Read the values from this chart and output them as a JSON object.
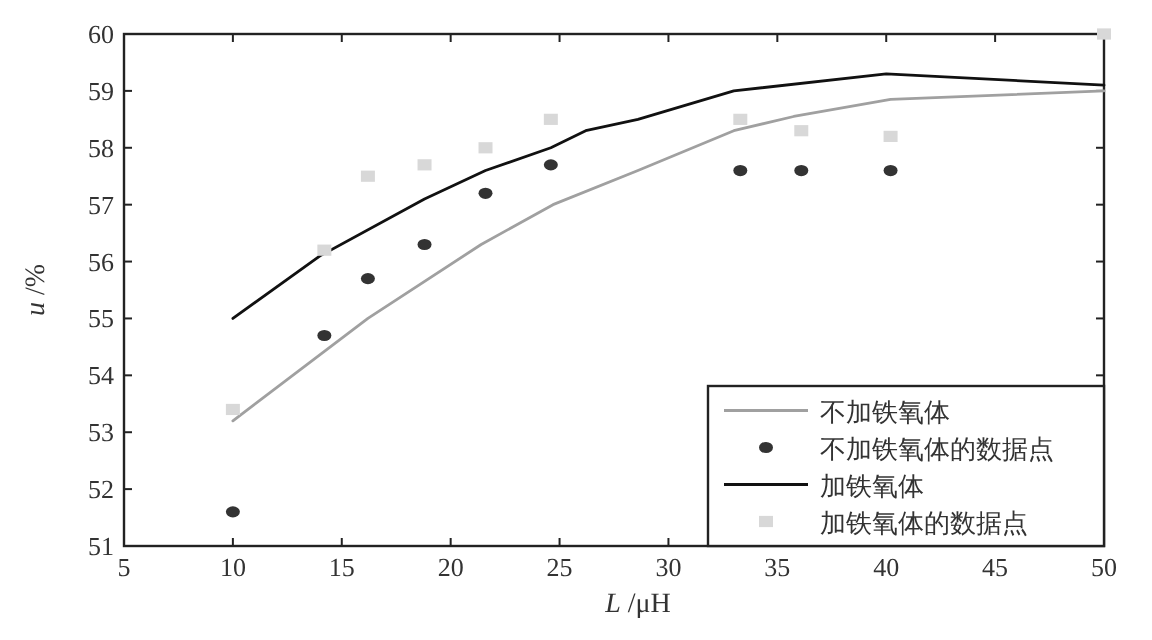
{
  "chart_data": {
    "type": "line",
    "xlabel": "*L* /μH",
    "ylabel": "*u* /%",
    "xlim": [
      5,
      50
    ],
    "ylim": [
      51,
      60
    ],
    "xticks": [
      5,
      10,
      15,
      20,
      25,
      30,
      35,
      40,
      45,
      50
    ],
    "yticks": [
      51,
      52,
      53,
      54,
      55,
      56,
      57,
      58,
      59,
      60
    ],
    "legend": "bottom right",
    "grid": false,
    "series": [
      {
        "name": "不加铁氧体",
        "color": "#a0a0a0",
        "x": [
          10,
          16.2,
          21.4,
          24.7,
          28.6,
          33.0,
          35.75,
          40.2,
          50
        ],
        "values": [
          53.2,
          55.0,
          56.3,
          57.0,
          57.6,
          58.3,
          58.55,
          58.85,
          59.0
        ]
      },
      {
        "name": "不加铁氧体的数据点",
        "type": "scatter",
        "marker": "circle",
        "color": "#333333",
        "x": [
          10,
          14.2,
          16.2,
          18.8,
          21.6,
          24.6,
          33.3,
          36.1,
          40.2
        ],
        "values": [
          51.6,
          54.7,
          55.7,
          56.3,
          57.2,
          57.7,
          57.6,
          57.6,
          57.6
        ]
      },
      {
        "name": "加铁氧体",
        "color": "#111111",
        "x": [
          10,
          14.0,
          18.8,
          21.6,
          24.6,
          26.2,
          28.6,
          33.0,
          40.0,
          50
        ],
        "values": [
          55.0,
          56.1,
          57.1,
          57.6,
          58.0,
          58.3,
          58.5,
          59.0,
          59.3,
          59.1
        ]
      },
      {
        "name": "加铁氧体的数据点",
        "type": "scatter",
        "marker": "square",
        "color": "#d8d8d8",
        "x": [
          10,
          14.2,
          16.2,
          18.8,
          21.6,
          24.6,
          33.3,
          36.1,
          40.2,
          50
        ],
        "values": [
          53.4,
          56.2,
          57.5,
          57.7,
          58.0,
          58.5,
          58.5,
          58.3,
          58.2,
          60.0
        ]
      }
    ]
  }
}
